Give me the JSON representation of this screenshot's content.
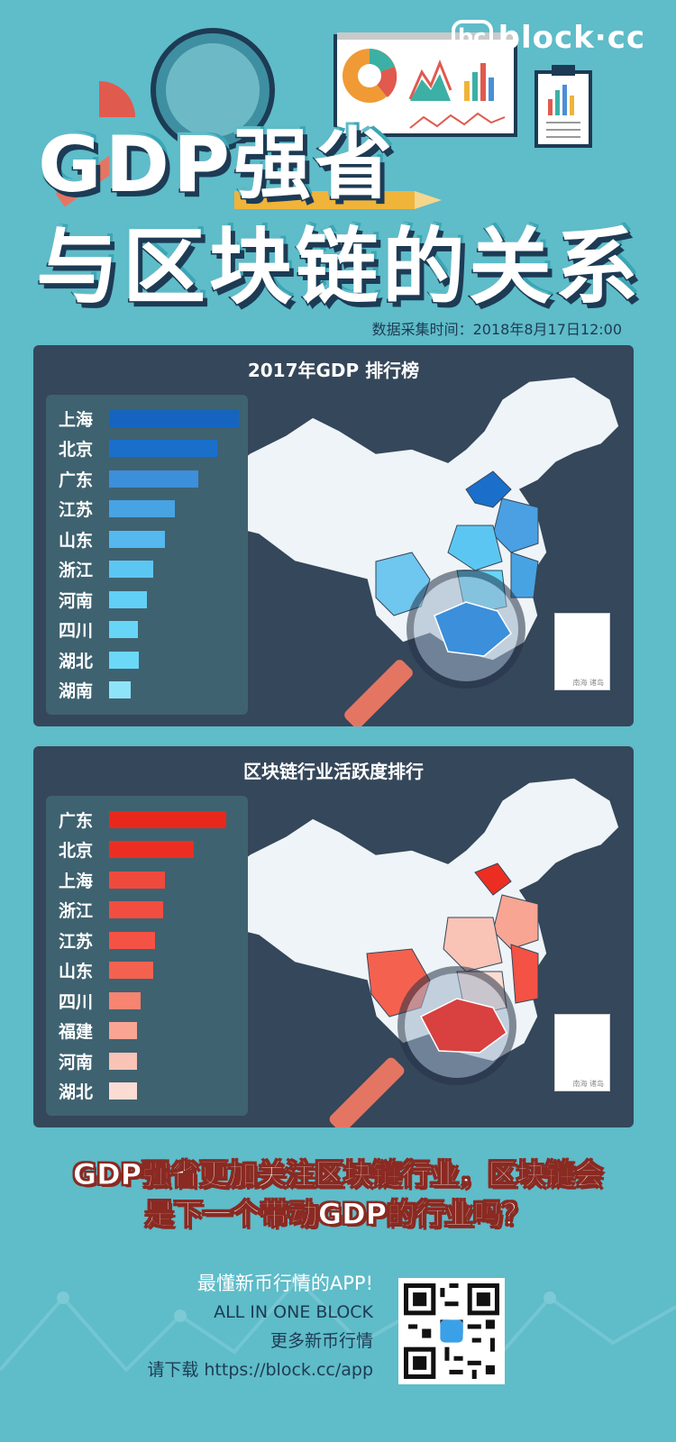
{
  "logo": {
    "badge": "bc",
    "text": "block·cc"
  },
  "title": {
    "line1": "GDP强省",
    "line2": "与区块链的关系"
  },
  "timestamp": "数据采集时间：2018年8月17日12:00",
  "panel1": {
    "title": "2017年GDP 排行榜",
    "items": [
      {
        "label": "上海",
        "value": 1.0,
        "color": "#1565c0"
      },
      {
        "label": "北京",
        "value": 0.83,
        "color": "#1a6fcb"
      },
      {
        "label": "广东",
        "value": 0.69,
        "color": "#3b8fdb"
      },
      {
        "label": "江苏",
        "value": 0.51,
        "color": "#48a3e3"
      },
      {
        "label": "山东",
        "value": 0.43,
        "color": "#55b8ef"
      },
      {
        "label": "浙江",
        "value": 0.34,
        "color": "#5cc6f3"
      },
      {
        "label": "河南",
        "value": 0.29,
        "color": "#62cff5"
      },
      {
        "label": "四川",
        "value": 0.22,
        "color": "#66d5f6"
      },
      {
        "label": "湖北",
        "value": 0.23,
        "color": "#6bd8f7"
      },
      {
        "label": "湖南",
        "value": 0.17,
        "color": "#8fe3f9"
      }
    ],
    "inset_label": "南海\n诸岛"
  },
  "panel2": {
    "title": "区块链行业活跃度排行",
    "items": [
      {
        "label": "广东",
        "value": 1.0,
        "color": "#e8281d"
      },
      {
        "label": "北京",
        "value": 0.72,
        "color": "#ec2e22"
      },
      {
        "label": "上海",
        "value": 0.48,
        "color": "#f04a3c"
      },
      {
        "label": "浙江",
        "value": 0.46,
        "color": "#f24d40"
      },
      {
        "label": "江苏",
        "value": 0.39,
        "color": "#f35244"
      },
      {
        "label": "山东",
        "value": 0.38,
        "color": "#f5614f"
      },
      {
        "label": "四川",
        "value": 0.27,
        "color": "#f68470"
      },
      {
        "label": "福建",
        "value": 0.24,
        "color": "#f8a593"
      },
      {
        "label": "河南",
        "value": 0.24,
        "color": "#f9c3b6"
      },
      {
        "label": "湖北",
        "value": 0.24,
        "color": "#fbdcd3"
      }
    ],
    "inset_label": "南海\n诸岛"
  },
  "question": {
    "line1": "GDP强省更加关注区块链行业，区块链会",
    "line2": "是下一个带动GDP的行业吗？"
  },
  "footer": {
    "line1": "最懂新币行情的APP!",
    "line2": "ALL IN ONE BLOCK",
    "line3": "更多新币行情",
    "line4": "请下载 https://block.cc/app"
  },
  "colors": {
    "background": "#5fbcc9",
    "panel": "#35475a",
    "title_stroke": "#1d3b54"
  }
}
